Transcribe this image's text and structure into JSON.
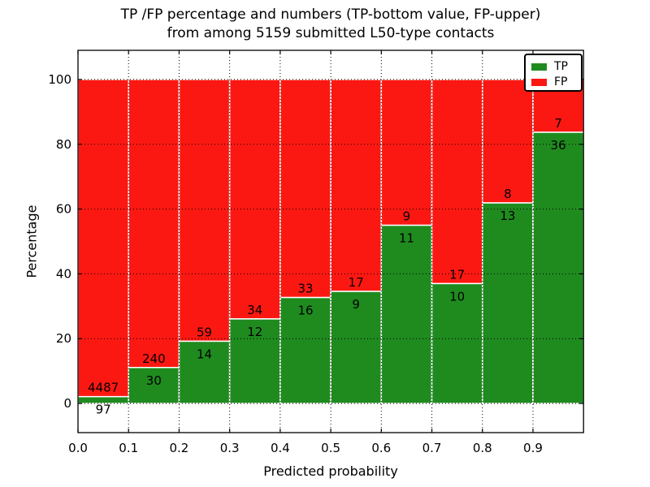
{
  "figure": {
    "title_line1": "TP /FP percentage and numbers (TP-bottom value, FP-upper)",
    "title_line2": "from among 5159 submitted L50-type contacts"
  },
  "chart_data": {
    "type": "bar",
    "stacked": true,
    "orientation": "vertical",
    "title": "TP /FP percentage and numbers (TP-bottom value, FP-upper) from among 5159 submitted L50-type contacts",
    "xlabel": "Predicted probability",
    "ylabel": "Percentage",
    "total_contacts": 5159,
    "bin_width": 0.1,
    "bin_starts": [
      0.0,
      0.1,
      0.2,
      0.3,
      0.4,
      0.5,
      0.6,
      0.7,
      0.8,
      0.9
    ],
    "xticks": [
      "0.0",
      "0.1",
      "0.2",
      "0.3",
      "0.4",
      "0.5",
      "0.6",
      "0.7",
      "0.8",
      "0.9"
    ],
    "yticks": [
      0,
      20,
      40,
      60,
      80,
      100
    ],
    "xlim": [
      0.0,
      1.0
    ],
    "ylim": [
      -9,
      109
    ],
    "grid": true,
    "grid_style": "dotted",
    "bar_edge_color": "#ffffff",
    "series": [
      {
        "name": "TP",
        "color": "#1f8b1f",
        "counts": [
          97,
          30,
          14,
          12,
          16,
          9,
          11,
          10,
          13,
          36
        ],
        "percent": [
          2.1,
          11.1,
          19.2,
          26.1,
          32.7,
          34.6,
          55.0,
          37.0,
          61.9,
          83.7
        ]
      },
      {
        "name": "FP",
        "color": "#fc1812",
        "counts": [
          4487,
          240,
          59,
          34,
          33,
          17,
          9,
          17,
          8,
          7
        ],
        "percent": [
          97.9,
          88.9,
          80.8,
          73.9,
          67.3,
          65.4,
          45.0,
          63.0,
          38.1,
          16.3
        ]
      }
    ],
    "legend": {
      "position": "upper right",
      "entries": [
        {
          "label": "TP",
          "color": "#1f8b1f"
        },
        {
          "label": "FP",
          "color": "#fc1812"
        }
      ]
    }
  }
}
